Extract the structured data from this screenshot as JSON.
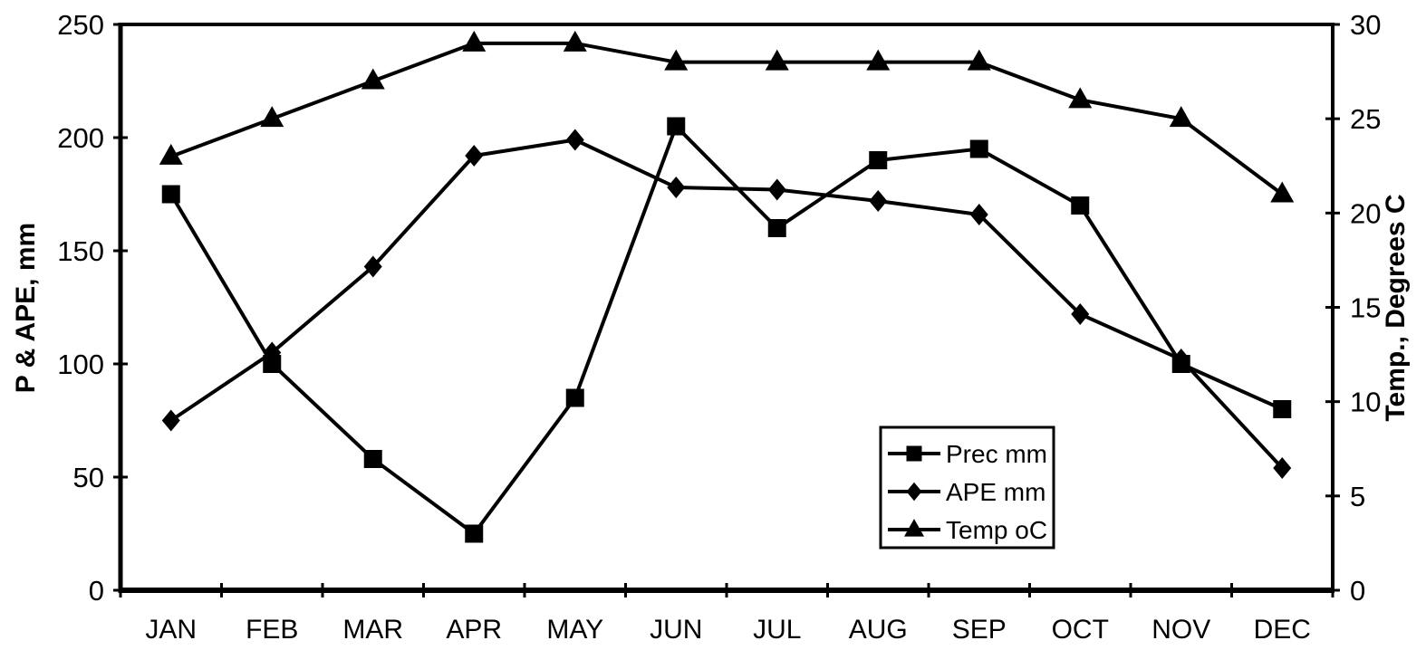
{
  "chart_data": {
    "type": "line",
    "title": "",
    "categories": [
      "JAN",
      "FEB",
      "MAR",
      "APR",
      "MAY",
      "JUN",
      "JUL",
      "AUG",
      "SEP",
      "OCT",
      "NOV",
      "DEC"
    ],
    "series": [
      {
        "name": "Prec mm",
        "marker": "square",
        "axis": "left",
        "values": [
          175,
          100,
          58,
          25,
          85,
          205,
          160,
          190,
          195,
          170,
          100,
          80
        ]
      },
      {
        "name": "APE mm",
        "marker": "diamond",
        "axis": "left",
        "values": [
          75,
          105,
          143,
          192,
          199,
          178,
          177,
          172,
          166,
          122,
          102,
          54
        ]
      },
      {
        "name": "Temp oC",
        "marker": "triangle",
        "axis": "right",
        "values": [
          23,
          25,
          27,
          29,
          29,
          28,
          28,
          28,
          28,
          26,
          25,
          21
        ]
      }
    ],
    "axes": {
      "left": {
        "label": "P & APE, mm",
        "min": 0,
        "max": 250,
        "tick_step": 50,
        "ticks": [
          "0",
          "50",
          "100",
          "150",
          "200",
          "250"
        ]
      },
      "right": {
        "label": "Temp., Degrees C",
        "min": 0,
        "max": 30,
        "tick_step": 5,
        "ticks": [
          "0",
          "5",
          "10",
          "15",
          "20",
          "25",
          "30"
        ]
      }
    },
    "legend": {
      "position": "inside-right",
      "entries": [
        "Prec mm",
        "APE mm",
        "Temp oC"
      ]
    },
    "grid": false,
    "colors": {
      "foreground": "#000000",
      "background": "#ffffff"
    }
  }
}
